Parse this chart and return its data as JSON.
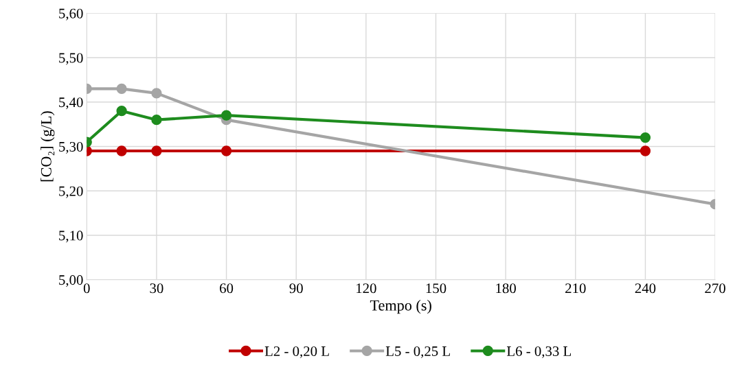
{
  "chart_data": {
    "type": "line",
    "xlabel": "Tempo (s)",
    "ylabel": "[CO₂] (g/L)",
    "series": [
      {
        "name": "L2 - 0,20 L",
        "color": "#c00000",
        "x": [
          0,
          15,
          30,
          60,
          240
        ],
        "values": [
          5.29,
          5.29,
          5.29,
          5.29,
          5.29
        ]
      },
      {
        "name": "L5 - 0,25 L",
        "color": "#a5a5a5",
        "x": [
          0,
          15,
          30,
          60,
          270
        ],
        "values": [
          5.43,
          5.43,
          5.42,
          5.36,
          5.17
        ]
      },
      {
        "name": "L6 - 0,33 L",
        "color": "#1e8c1e",
        "x": [
          0,
          15,
          30,
          60,
          240
        ],
        "values": [
          5.31,
          5.38,
          5.36,
          5.37,
          5.32
        ]
      }
    ],
    "xlim": [
      0,
      270
    ],
    "xticks": [
      0,
      30,
      60,
      90,
      120,
      150,
      180,
      210,
      240,
      270
    ],
    "ylim": [
      5.0,
      5.6
    ],
    "yticks": [
      {
        "value": 5.0,
        "label": "5,00"
      },
      {
        "value": 5.1,
        "label": "5,10"
      },
      {
        "value": 5.2,
        "label": "5,20"
      },
      {
        "value": 5.3,
        "label": "5,30"
      },
      {
        "value": 5.4,
        "label": "5,40"
      },
      {
        "value": 5.5,
        "label": "5,50"
      },
      {
        "value": 5.6,
        "label": "5,60"
      }
    ],
    "grid": true,
    "legend": "bottom",
    "marker": "circle",
    "line_style": "solid"
  }
}
